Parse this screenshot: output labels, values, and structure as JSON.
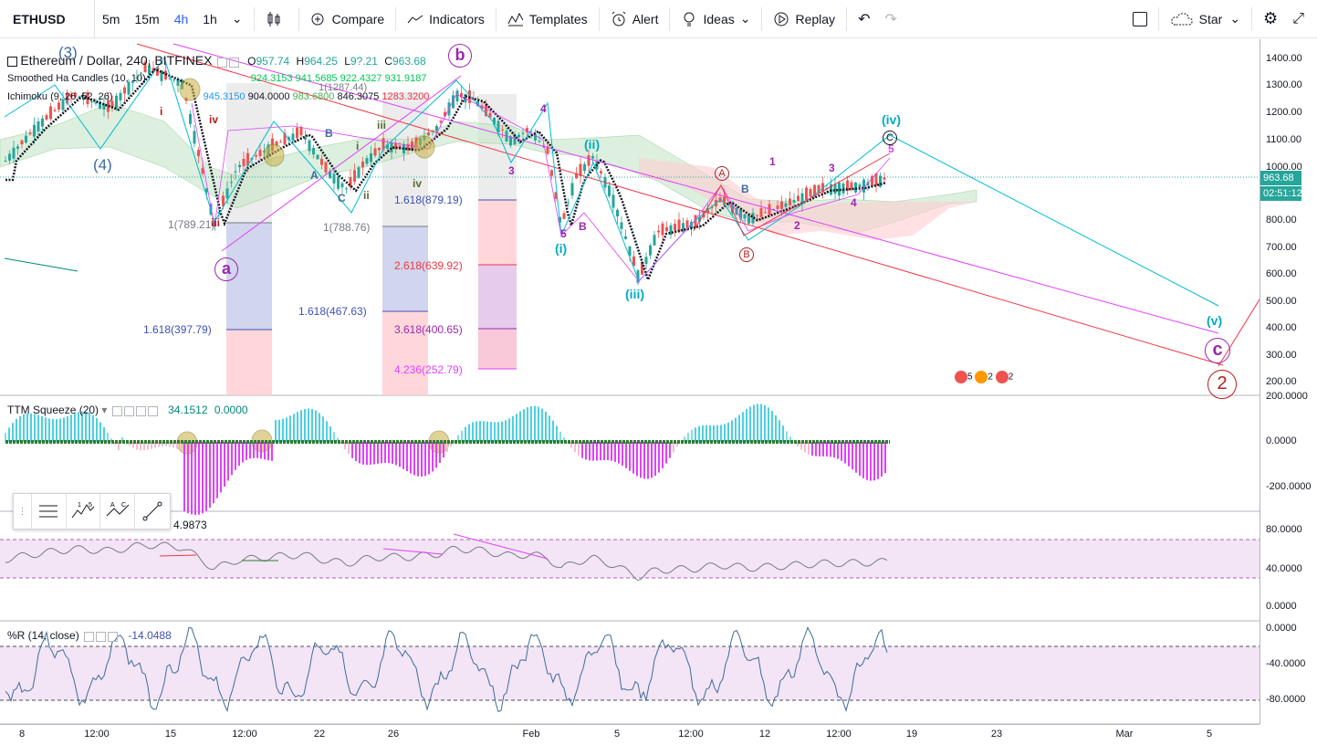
{
  "toolbar": {
    "symbol": "ETHUSD",
    "intervals": [
      "5m",
      "15m",
      "4h",
      "1h"
    ],
    "active_interval": "4h",
    "compare": "Compare",
    "indicators": "Indicators",
    "templates": "Templates",
    "alert": "Alert",
    "ideas": "Ideas",
    "replay": "Replay",
    "star": "Star"
  },
  "main_pane": {
    "title": "Ethereum / Dollar, 240, BITFINEX",
    "ohlc": {
      "o_label": "O",
      "o": "957.74",
      "h_label": "H",
      "h": "964.25",
      "l_label": "L",
      "l": "9?.21",
      "c_label": "C",
      "c": "963.68"
    },
    "ha_name": "Smoothed Ha Candles (10, 10)",
    "ha_values": [
      "924.3153",
      "941.5685",
      "922.4327",
      "931.9187"
    ],
    "ichimoku_name": "Ichimoku (9, 26, 52, 26)",
    "ichimoku_values": [
      "945.3150",
      "904.0000",
      "983.6800",
      "846.3075",
      "1283.3200"
    ]
  },
  "price_axis": [
    "1400.00",
    "1300.00",
    "1200.00",
    "1100.00",
    "1000.00",
    "900.00",
    "800.00",
    "700.00",
    "600.00",
    "500.00",
    "400.00",
    "300.00",
    "200.00"
  ],
  "last_price": "963.68",
  "countdown": "02:51:12",
  "fib_labels": {
    "f1": "1.618(397.79)",
    "f2": "1(789.21)",
    "f3": "1.618(467.63)",
    "f4": "1(788.76)",
    "f5": "1.618(879.19)",
    "f6": "2.618(639.92)",
    "f7": "3.618(400.65)",
    "f8": "4.236(252.79)",
    "f9": "1(1287.44)"
  },
  "wave_labels": {
    "a": "a",
    "b": "b",
    "c": "c",
    "two": "2",
    "iii": "(iii)",
    "ii": "(ii)",
    "i": "(i)",
    "iv": "(iv)",
    "v": "(v)",
    "three": "(3)",
    "four": "(4)",
    "A": "A",
    "B": "B",
    "C": "C"
  },
  "ttm": {
    "name": "TTM Squeeze (20)",
    "v1": "34.1512",
    "v2": "0.0000",
    "axis": [
      "200.0000",
      "0.0000",
      "-200.0000"
    ]
  },
  "rsi": {
    "value": "4.9873",
    "axis": [
      "80.0000",
      "40.0000",
      "0.0000"
    ]
  },
  "wr": {
    "name": "%R (14, close)",
    "value": "-14.0488",
    "axis": [
      "0.0000",
      "-40.0000",
      "-80.0000"
    ]
  },
  "time_axis": [
    "8",
    "12:00",
    "15",
    "12:00",
    "22",
    "26",
    "Feb",
    "5",
    "12:00",
    "12",
    "12:00",
    "19",
    "23",
    "Mar",
    "5"
  ],
  "events": [
    "5",
    "2",
    "2"
  ],
  "colors": {
    "up": "#26a69a",
    "down": "#ef5350",
    "magenta": "#e040fb",
    "cyan": "#00bcd4",
    "red": "#f23645",
    "cloud_green": "#c8e6c9",
    "cloud_red": "#ffcdd2",
    "rsi_band": "#f3e5f5"
  }
}
